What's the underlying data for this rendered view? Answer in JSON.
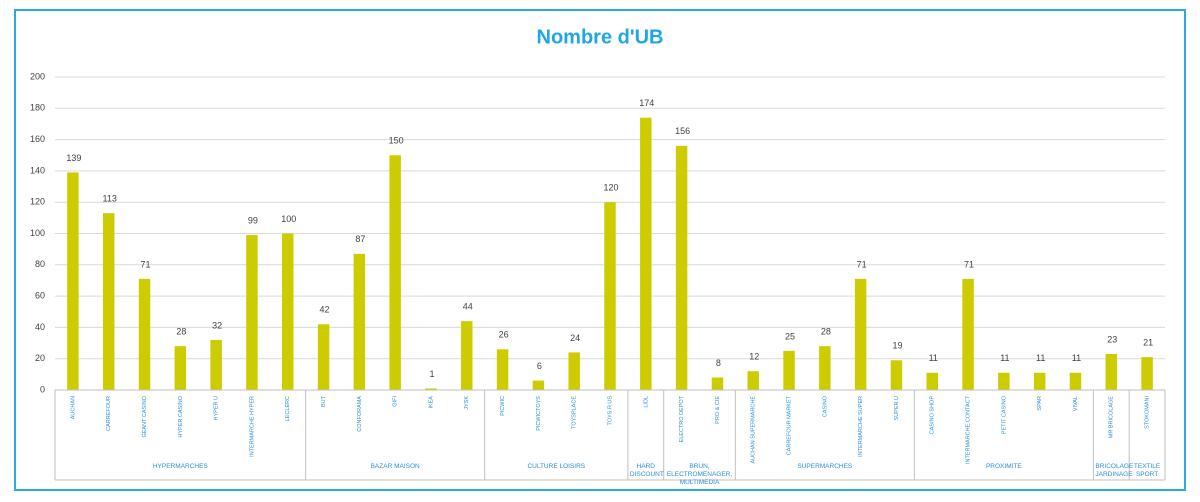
{
  "chart_data": {
    "type": "bar",
    "title": "Nombre d'UB",
    "color": "#cccc00",
    "grid": true,
    "ylim": [
      0,
      200
    ],
    "yticks": [
      0,
      20,
      40,
      60,
      80,
      100,
      120,
      140,
      160,
      180,
      200
    ],
    "groups": [
      {
        "name": "HYPERMARCHES",
        "categories": [
          "AUCHAN",
          "CARREFOUR",
          "GEANT CASINO",
          "HYPER CASINO",
          "HYPER U",
          "INTERMARCHE HYPER",
          "LECLERC"
        ],
        "values": [
          139,
          113,
          71,
          28,
          32,
          99,
          100
        ]
      },
      {
        "name": "BAZAR MAISON",
        "categories": [
          "BUT",
          "CONFORAMA",
          "GIFI",
          "IKEA",
          "JYSK"
        ],
        "values": [
          42,
          87,
          150,
          1,
          44
        ]
      },
      {
        "name": "CULTURE LOISIRS",
        "categories": [
          "PICWIC",
          "PICWICTOYS",
          "TOYSPLACE",
          "TOYS R US"
        ],
        "values": [
          26,
          6,
          24,
          120
        ]
      },
      {
        "name": "HARD DISCOUNT",
        "categories": [
          "LIDL"
        ],
        "values": [
          174
        ]
      },
      {
        "name": "BRUN, ELECTROMENAGER, MULTIMEDIA",
        "categories": [
          "ELECTRO DEPOT",
          "PRO & CIE"
        ],
        "values": [
          156,
          8
        ]
      },
      {
        "name": "SUPERMARCHES",
        "categories": [
          "AUCHAN SUPERMARCHE",
          "CARREFOUR MARKET",
          "CASINO",
          "INTERMARCHE SUPER",
          "SUPER U"
        ],
        "values": [
          12,
          25,
          28,
          71,
          19
        ]
      },
      {
        "name": "PROXIMITE",
        "categories": [
          "CASINO SHOP",
          "INTERMARCHE CONTACT",
          "PETIT CASINO",
          "SPAR",
          "VIVAL"
        ],
        "values": [
          11,
          71,
          11,
          11,
          11
        ]
      },
      {
        "name": "BRICOLAGE JARDINAGE",
        "categories": [
          "MR BRICOLAGE"
        ],
        "values": [
          23
        ]
      },
      {
        "name": "TEXTILE SPORT",
        "categories": [
          "STOKOMANI"
        ],
        "values": [
          21
        ]
      }
    ]
  }
}
